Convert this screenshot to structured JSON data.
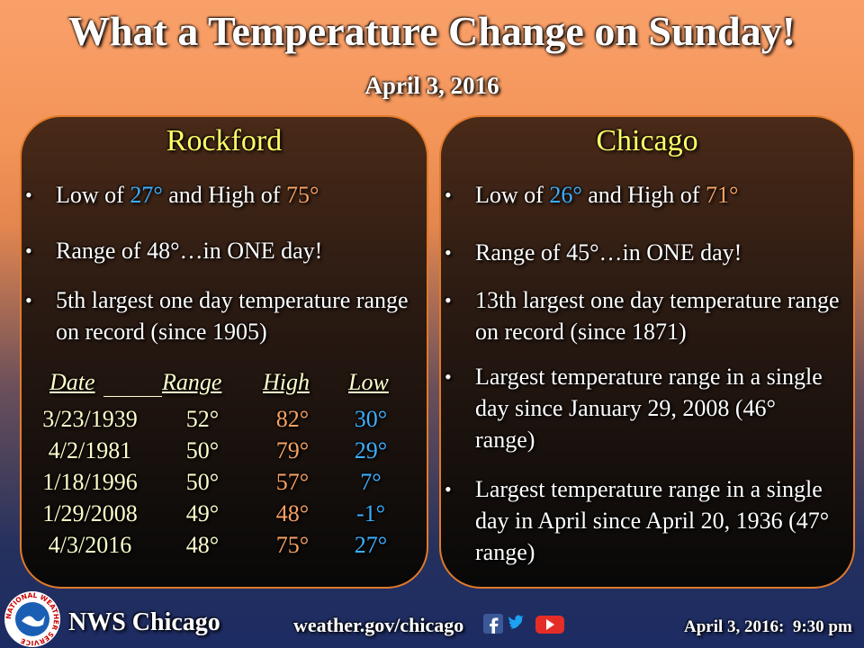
{
  "header": {
    "title": "What a Temperature Change on Sunday!",
    "date": "April 3, 2016"
  },
  "panels": [
    {
      "title": "Rockford",
      "summary": {
        "low_label": "Low of",
        "low": "27°",
        "high_label": "and High of",
        "high": "75°"
      },
      "bullets": [
        "Range of 48°…in ONE day!",
        "5th largest one day temperature range on record (since 1905)"
      ],
      "table": {
        "columns": [
          "Date",
          "Range",
          "High",
          "Low"
        ],
        "rows": [
          [
            "3/23/1939",
            "52°",
            "82°",
            "30°"
          ],
          [
            "4/2/1981",
            "50°",
            "79°",
            "29°"
          ],
          [
            "1/18/1996",
            "50°",
            "57°",
            "7°"
          ],
          [
            "1/29/2008",
            "49°",
            "48°",
            "-1°"
          ],
          [
            "4/3/2016",
            "48°",
            "75°",
            "27°"
          ]
        ]
      }
    },
    {
      "title": "Chicago",
      "summary": {
        "low_label": "Low of",
        "low": "26°",
        "high_label": "and High of",
        "high": "71°"
      },
      "bullets": [
        "Range of 45°…in ONE day!",
        "13th largest one day temperature range on record (since 1871)",
        "Largest temperature range in a single day since January 29, 2008 (46° range)",
        "Largest temperature range in a single day in April since April 20, 1936 (47° range)"
      ]
    }
  ],
  "footer": {
    "logo": "NATIONAL WEATHER SERVICE",
    "office": "NWS Chicago",
    "url": "weather.gov/chicago",
    "timestamp": "April 3, 2016:  9:30 pm"
  }
}
